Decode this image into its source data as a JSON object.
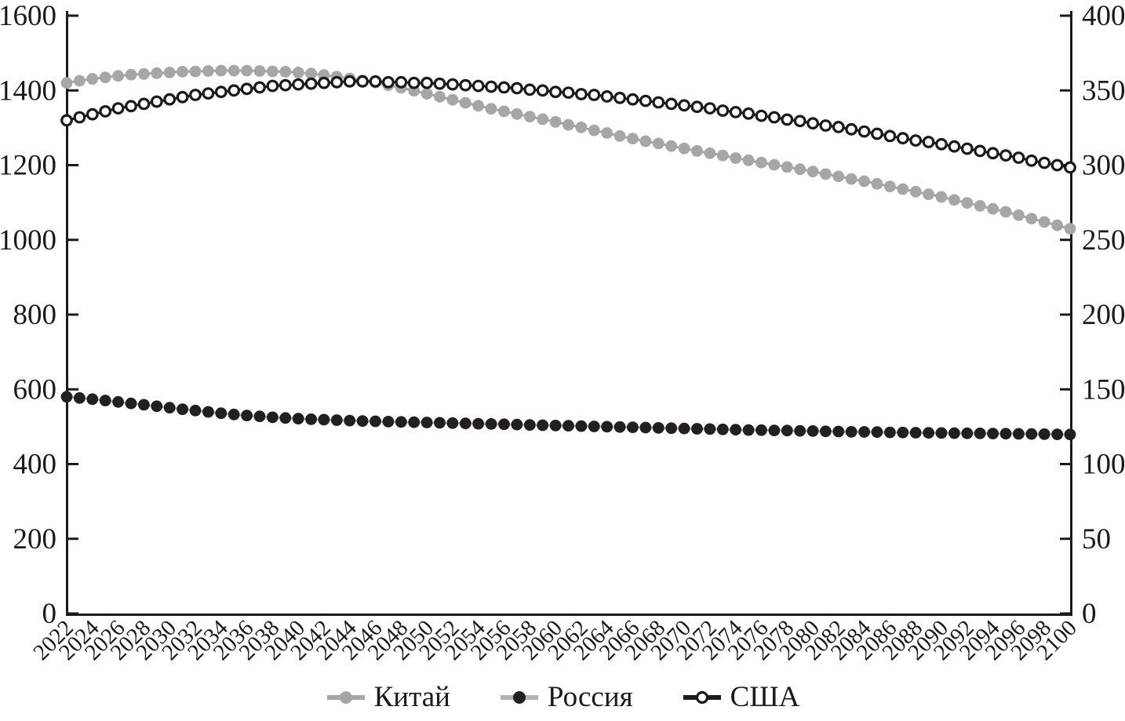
{
  "figure": {
    "background": "#ffffff",
    "axis_color": "#1a1a1a"
  },
  "chart_data": {
    "type": "line",
    "title": "",
    "xlabel": "",
    "ylabel_left": "",
    "ylabel_right": "",
    "grid": false,
    "legend_position": "bottom-center",
    "x": [
      2022,
      2023,
      2024,
      2025,
      2026,
      2027,
      2028,
      2029,
      2030,
      2031,
      2032,
      2033,
      2034,
      2035,
      2036,
      2037,
      2038,
      2039,
      2040,
      2041,
      2042,
      2043,
      2044,
      2045,
      2046,
      2047,
      2048,
      2049,
      2050,
      2051,
      2052,
      2053,
      2054,
      2055,
      2056,
      2057,
      2058,
      2059,
      2060,
      2061,
      2062,
      2063,
      2064,
      2065,
      2066,
      2067,
      2068,
      2069,
      2070,
      2071,
      2072,
      2073,
      2074,
      2075,
      2076,
      2077,
      2078,
      2079,
      2080,
      2081,
      2082,
      2083,
      2084,
      2085,
      2086,
      2087,
      2088,
      2089,
      2090,
      2091,
      2092,
      2093,
      2094,
      2095,
      2096,
      2097,
      2098,
      2099,
      2100
    ],
    "x_tick_labels": [
      "2022",
      "2024",
      "2026",
      "2028",
      "2030",
      "2032",
      "2034",
      "2036",
      "2038",
      "2040",
      "2042",
      "2044",
      "2046",
      "2048",
      "2050",
      "2052",
      "2054",
      "2056",
      "2058",
      "2060",
      "2062",
      "2064",
      "2066",
      "2068",
      "2070",
      "2072",
      "2074",
      "2076",
      "2078",
      "2080",
      "2082",
      "2084",
      "2086",
      "2088",
      "2090",
      "2092",
      "2094",
      "2096",
      "2098",
      "2100"
    ],
    "left_axis": {
      "range": [
        0,
        1600
      ],
      "ticks": [
        0,
        200,
        400,
        600,
        800,
        1000,
        1200,
        1400,
        1600
      ]
    },
    "right_axis": {
      "range": [
        0,
        400
      ],
      "ticks": [
        0,
        50,
        100,
        150,
        200,
        250,
        300,
        350,
        400
      ]
    },
    "series": [
      {
        "name": "Китай",
        "axis": "left",
        "marker": "filled-circle",
        "color": "#a6a6a6",
        "line_color": "#a6a6a6",
        "values": [
          1420,
          1426,
          1431,
          1435,
          1439,
          1442,
          1444,
          1446,
          1448,
          1450,
          1451,
          1452,
          1453,
          1453,
          1453,
          1452,
          1451,
          1450,
          1448,
          1445,
          1441,
          1437,
          1432,
          1427,
          1421,
          1414,
          1407,
          1399,
          1391,
          1383,
          1375,
          1367,
          1359,
          1351,
          1344,
          1337,
          1330,
          1323,
          1316,
          1308,
          1301,
          1293,
          1286,
          1278,
          1271,
          1264,
          1258,
          1251,
          1245,
          1238,
          1232,
          1226,
          1219,
          1213,
          1207,
          1201,
          1195,
          1189,
          1183,
          1176,
          1170,
          1163,
          1157,
          1150,
          1143,
          1136,
          1129,
          1122,
          1115,
          1107,
          1099,
          1091,
          1083,
          1075,
          1066,
          1057,
          1048,
          1039,
          1030
        ]
      },
      {
        "name": "Россия",
        "axis": "right",
        "marker": "filled-circle",
        "color": "#231f20",
        "line_color": "#b3b3b3",
        "values": [
          145.0,
          144.2,
          143.4,
          142.5,
          141.6,
          140.6,
          139.7,
          138.7,
          137.7,
          136.7,
          135.8,
          134.9,
          134.0,
          133.2,
          132.5,
          131.9,
          131.3,
          130.8,
          130.4,
          130.0,
          129.7,
          129.4,
          129.1,
          128.8,
          128.6,
          128.4,
          128.2,
          128.0,
          127.8,
          127.6,
          127.4,
          127.2,
          127.0,
          126.8,
          126.6,
          126.4,
          126.2,
          126.0,
          125.8,
          125.6,
          125.4,
          125.2,
          125.0,
          124.8,
          124.6,
          124.4,
          124.2,
          124.0,
          123.8,
          123.6,
          123.4,
          123.2,
          123.0,
          122.8,
          122.7,
          122.5,
          122.4,
          122.2,
          122.1,
          121.9,
          121.8,
          121.6,
          121.5,
          121.4,
          121.2,
          121.1,
          121.0,
          120.9,
          120.8,
          120.7,
          120.6,
          120.5,
          120.4,
          120.3,
          120.2,
          120.1,
          120.0,
          119.9,
          119.8
        ]
      },
      {
        "name": "США",
        "axis": "right",
        "marker": "open-circle",
        "color": "#ffffff",
        "stroke": "#1a1a1a",
        "line_color": "#1a1a1a",
        "values": [
          330,
          332,
          334,
          336,
          338,
          339.5,
          341,
          342.5,
          344,
          345.5,
          347,
          348,
          349,
          350,
          351,
          352,
          353,
          353.5,
          354,
          354.5,
          355,
          355.5,
          356,
          356,
          356,
          355.5,
          355.5,
          355,
          355,
          354.5,
          354,
          353.5,
          353,
          352.5,
          352,
          351.5,
          350.5,
          350,
          349,
          348.5,
          347.5,
          347,
          346,
          345,
          344,
          343,
          342,
          341,
          340,
          339,
          338,
          336.5,
          335.5,
          334.5,
          333,
          332,
          330.5,
          329.5,
          328,
          326.5,
          325.5,
          324,
          322.5,
          321,
          319.5,
          318,
          316.5,
          315.5,
          314,
          312.5,
          311,
          309.5,
          308,
          306.5,
          305,
          303,
          301.5,
          300,
          298.5
        ]
      }
    ]
  }
}
